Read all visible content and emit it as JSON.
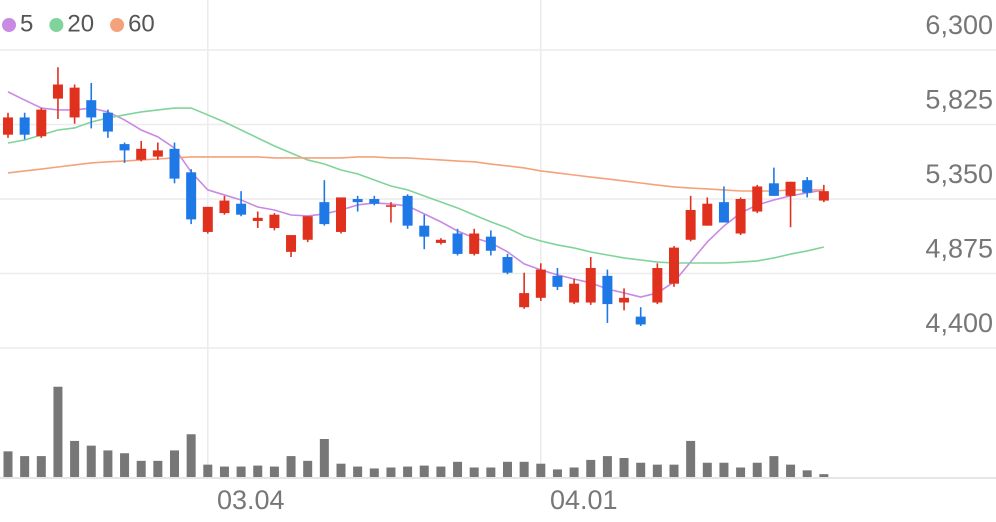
{
  "chart_data": {
    "type": "candlestick",
    "categories": [
      null,
      null,
      null,
      null,
      null,
      null,
      null,
      null,
      null,
      null,
      null,
      null,
      "03.04",
      null,
      null,
      null,
      null,
      null,
      null,
      null,
      null,
      null,
      null,
      null,
      null,
      null,
      null,
      null,
      null,
      null,
      null,
      null,
      "04.01",
      null,
      null,
      null,
      null,
      null,
      null,
      null,
      null,
      null,
      null,
      null,
      null,
      null,
      null,
      null,
      null,
      null
    ],
    "open": [
      5760,
      5870,
      5750,
      5990,
      5870,
      5980,
      5900,
      5700,
      5600,
      5620,
      5670,
      5520,
      5140,
      5260,
      5320,
      5210,
      5165,
      5013,
      5090,
      5330,
      5140,
      5350,
      5350,
      5300,
      5370,
      5180,
      5070,
      5130,
      5000,
      5110,
      4980,
      4660,
      4720,
      4860,
      4690,
      4690,
      4860,
      4690,
      4600,
      4690,
      4810,
      5090,
      5180,
      5330,
      5130,
      5270,
      5450,
      5370,
      5470,
      5340
    ],
    "high": [
      5900,
      5900,
      5930,
      6190,
      6080,
      6090,
      5920,
      5710,
      5720,
      5710,
      5710,
      5540,
      5300,
      5370,
      5400,
      5270,
      5260,
      5120,
      5240,
      5470,
      5360,
      5370,
      5370,
      5330,
      5380,
      5250,
      5100,
      5160,
      5160,
      5150,
      5000,
      4880,
      4940,
      4910,
      4840,
      4980,
      4900,
      4780,
      4660,
      4940,
      5050,
      5370,
      5360,
      5430,
      5360,
      5440,
      5550,
      5460,
      5490,
      5440
    ],
    "low": [
      5740,
      5730,
      5740,
      5860,
      5830,
      5800,
      5740,
      5580,
      5590,
      5600,
      5450,
      5190,
      5130,
      5250,
      5240,
      5165,
      5150,
      4980,
      5075,
      5180,
      5130,
      5270,
      5310,
      5200,
      5160,
      5030,
      5060,
      4990,
      4990,
      4990,
      4870,
      4650,
      4700,
      4770,
      4680,
      4675,
      4560,
      4640,
      4540,
      4680,
      4790,
      5080,
      5180,
      5200,
      5120,
      5260,
      5370,
      5170,
      5360,
      5330
    ],
    "close": [
      5870,
      5760,
      5920,
      6080,
      6060,
      5870,
      5780,
      5660,
      5670,
      5660,
      5480,
      5220,
      5300,
      5340,
      5250,
      5230,
      5250,
      5120,
      5240,
      5190,
      5360,
      5330,
      5320,
      5310,
      5180,
      5110,
      5090,
      5000,
      5130,
      5020,
      4880,
      4750,
      4900,
      4790,
      4810,
      4910,
      4680,
      4720,
      4550,
      4910,
      5040,
      5280,
      5320,
      5200,
      5350,
      5430,
      5370,
      5460,
      5390,
      5400
    ],
    "up_color": "#e0301e",
    "down_color": "#1e78e6",
    "series": [
      {
        "name": "5",
        "color": "#c98ae3",
        "values": [
          6033,
          5981,
          5930,
          5918,
          5918,
          5930,
          5905,
          5854,
          5790,
          5746,
          5675,
          5522,
          5408,
          5376,
          5344,
          5299,
          5280,
          5248,
          5242,
          5255,
          5280,
          5312,
          5325,
          5318,
          5306,
          5255,
          5204,
          5146,
          5102,
          5070,
          5013,
          4936,
          4898,
          4866,
          4840,
          4815,
          4776,
          4751,
          4725,
          4751,
          4821,
          4949,
          5076,
          5178,
          5261,
          5312,
          5344,
          5370,
          5389,
          5408
        ]
      },
      {
        "name": "20",
        "color": "#80d49b",
        "values": [
          5707,
          5726,
          5758,
          5790,
          5803,
          5841,
          5867,
          5886,
          5905,
          5918,
          5930,
          5930,
          5886,
          5841,
          5790,
          5739,
          5688,
          5643,
          5599,
          5573,
          5535,
          5510,
          5471,
          5433,
          5408,
          5369,
          5331,
          5293,
          5248,
          5204,
          5165,
          5114,
          5082,
          5057,
          5038,
          5012,
          4993,
          4974,
          4961,
          4948,
          4942,
          4942,
          4942,
          4942,
          4948,
          4955,
          4974,
          4999,
          5019,
          5044
        ]
      },
      {
        "name": "60",
        "color": "#f4a27c",
        "values": [
          5516,
          5529,
          5541,
          5554,
          5567,
          5580,
          5587,
          5592,
          5599,
          5605,
          5612,
          5618,
          5618,
          5618,
          5618,
          5618,
          5612,
          5612,
          5612,
          5612,
          5612,
          5618,
          5618,
          5612,
          5612,
          5605,
          5599,
          5592,
          5587,
          5573,
          5561,
          5548,
          5529,
          5516,
          5503,
          5490,
          5478,
          5465,
          5452,
          5439,
          5427,
          5420,
          5414,
          5408,
          5401,
          5401,
          5401,
          5408,
          5408,
          5408
        ]
      }
    ],
    "ylim": [
      4400,
      6300
    ],
    "yticks": [
      {
        "value": 6300,
        "label": "6,300"
      },
      {
        "value": 5825,
        "label": "5,825"
      },
      {
        "value": 5350,
        "label": "5,350"
      },
      {
        "value": 4875,
        "label": "4,875"
      },
      {
        "value": 4400,
        "label": "4,400"
      }
    ],
    "volume": {
      "color": "#777777",
      "ylim": [
        0,
        100
      ],
      "values": [
        27,
        22,
        22,
        95,
        38,
        33,
        28,
        25,
        17,
        17,
        28,
        45,
        13,
        11,
        11,
        12,
        11,
        22,
        17,
        40,
        14,
        11,
        9,
        10,
        11,
        12,
        11,
        16,
        10,
        10,
        16,
        16,
        14,
        8,
        10,
        18,
        22,
        20,
        15,
        13,
        13,
        38,
        15,
        15,
        10,
        15,
        22,
        13,
        7,
        3
      ]
    },
    "grid": true
  }
}
